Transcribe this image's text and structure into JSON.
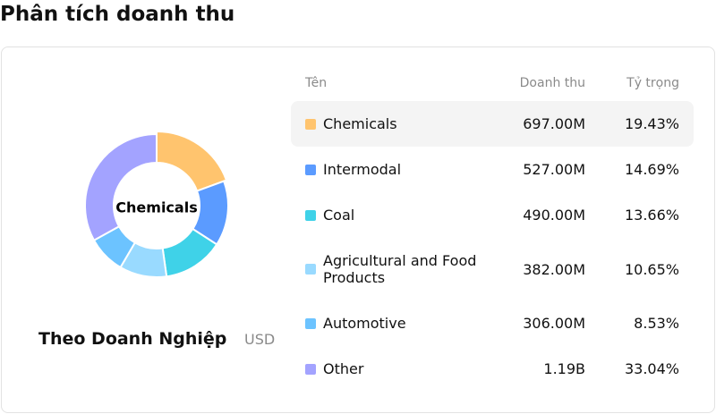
{
  "title": "Phân tích doanh thu",
  "chart_data": {
    "type": "donut",
    "subtitle": "Theo Doanh Nghiệp",
    "unit": "USD",
    "categories": [
      "Chemicals",
      "Intermodal",
      "Coal",
      "Agricultural and Food Products",
      "Automotive",
      "Other"
    ],
    "colors": [
      "#ffc46e",
      "#5b9bff",
      "#3fd2e8",
      "#99daff",
      "#6cc3ff",
      "#a3a3ff"
    ],
    "values": [
      19.43,
      14.69,
      13.66,
      10.65,
      8.53,
      33.04
    ],
    "value_labels": [
      "19.43%",
      "14.69%",
      "13.66%",
      "10.65%",
      "8.53%",
      "33.04%"
    ]
  },
  "table": {
    "headers": [
      "Tên",
      "Doanh thu",
      "Tỷ trọng"
    ],
    "revenue": [
      "697.00M",
      "527.00M",
      "490.00M",
      "382.00M",
      "306.00M",
      "1.19B"
    ]
  }
}
